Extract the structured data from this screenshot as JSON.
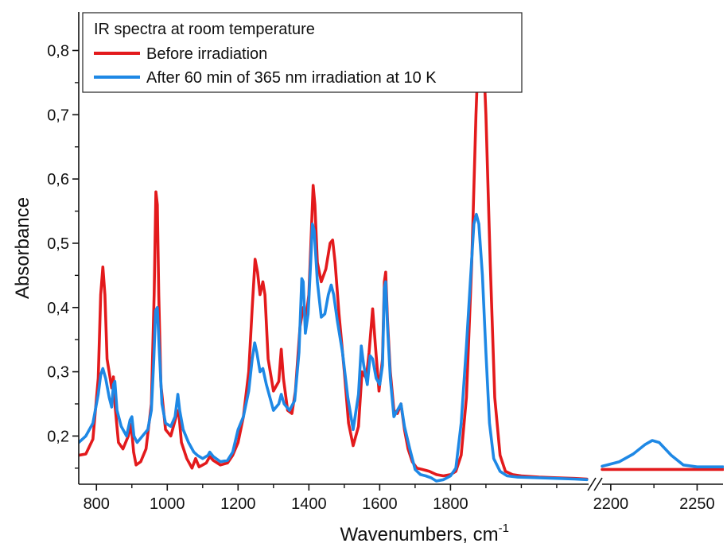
{
  "chart_data": {
    "type": "line",
    "ylabel": "Absorbance",
    "xlabel_main": "Wavenumbers, cm",
    "xlabel_sup": "-1",
    "ylim": [
      0.125,
      0.86
    ],
    "yticks": [
      0.2,
      0.3,
      0.4,
      0.5,
      0.6,
      0.7,
      0.8
    ],
    "ytick_labels": [
      "0,2",
      "0,3",
      "0,4",
      "0,5",
      "0,6",
      "0,7",
      "0,8"
    ],
    "x_segments": [
      {
        "xlim": [
          750,
          2190
        ],
        "ticks": [
          800,
          1000,
          1200,
          1400,
          1600,
          1800
        ],
        "tick_labels": [
          "800",
          "1000",
          "1200",
          "1400",
          "1600",
          "1800"
        ],
        "minor_step": 100
      },
      {
        "xlim": [
          2195,
          2265
        ],
        "ticks": [
          2200,
          2250
        ],
        "tick_labels": [
          "2200",
          "2250"
        ],
        "minor_step": 25
      }
    ],
    "axis_break": true,
    "grid": false,
    "legend_position": "top-left",
    "legend_title": "IR spectra at room temperature",
    "series": [
      {
        "name": "Before irradiation",
        "color": "#e31a1c",
        "segments": [
          [
            [
              750,
              0.17
            ],
            [
              770,
              0.172
            ],
            [
              790,
              0.195
            ],
            [
              805,
              0.29
            ],
            [
              812,
              0.42
            ],
            [
              818,
              0.463
            ],
            [
              824,
              0.42
            ],
            [
              830,
              0.32
            ],
            [
              838,
              0.292
            ],
            [
              843,
              0.275
            ],
            [
              848,
              0.292
            ],
            [
              853,
              0.245
            ],
            [
              862,
              0.19
            ],
            [
              875,
              0.18
            ],
            [
              890,
              0.2
            ],
            [
              898,
              0.218
            ],
            [
              905,
              0.175
            ],
            [
              912,
              0.155
            ],
            [
              925,
              0.16
            ],
            [
              940,
              0.18
            ],
            [
              955,
              0.25
            ],
            [
              963,
              0.42
            ],
            [
              968,
              0.58
            ],
            [
              972,
              0.56
            ],
            [
              976,
              0.42
            ],
            [
              982,
              0.28
            ],
            [
              995,
              0.21
            ],
            [
              1010,
              0.2
            ],
            [
              1025,
              0.23
            ],
            [
              1032,
              0.24
            ],
            [
              1040,
              0.19
            ],
            [
              1055,
              0.165
            ],
            [
              1070,
              0.15
            ],
            [
              1080,
              0.165
            ],
            [
              1090,
              0.152
            ],
            [
              1110,
              0.158
            ],
            [
              1120,
              0.168
            ],
            [
              1130,
              0.162
            ],
            [
              1150,
              0.155
            ],
            [
              1170,
              0.158
            ],
            [
              1185,
              0.17
            ],
            [
              1200,
              0.19
            ],
            [
              1215,
              0.23
            ],
            [
              1230,
              0.3
            ],
            [
              1240,
              0.4
            ],
            [
              1248,
              0.475
            ],
            [
              1255,
              0.455
            ],
            [
              1262,
              0.42
            ],
            [
              1270,
              0.44
            ],
            [
              1276,
              0.42
            ],
            [
              1285,
              0.32
            ],
            [
              1300,
              0.27
            ],
            [
              1315,
              0.285
            ],
            [
              1322,
              0.335
            ],
            [
              1328,
              0.29
            ],
            [
              1340,
              0.24
            ],
            [
              1352,
              0.235
            ],
            [
              1362,
              0.27
            ],
            [
              1375,
              0.37
            ],
            [
              1384,
              0.4
            ],
            [
              1392,
              0.385
            ],
            [
              1400,
              0.42
            ],
            [
              1407,
              0.52
            ],
            [
              1412,
              0.59
            ],
            [
              1417,
              0.56
            ],
            [
              1424,
              0.47
            ],
            [
              1435,
              0.44
            ],
            [
              1448,
              0.46
            ],
            [
              1460,
              0.5
            ],
            [
              1467,
              0.505
            ],
            [
              1474,
              0.47
            ],
            [
              1485,
              0.39
            ],
            [
              1500,
              0.3
            ],
            [
              1512,
              0.22
            ],
            [
              1525,
              0.185
            ],
            [
              1540,
              0.215
            ],
            [
              1550,
              0.3
            ],
            [
              1562,
              0.29
            ],
            [
              1570,
              0.33
            ],
            [
              1580,
              0.398
            ],
            [
              1588,
              0.34
            ],
            [
              1598,
              0.27
            ],
            [
              1608,
              0.32
            ],
            [
              1613,
              0.44
            ],
            [
              1617,
              0.455
            ],
            [
              1622,
              0.38
            ],
            [
              1630,
              0.3
            ],
            [
              1640,
              0.24
            ],
            [
              1650,
              0.235
            ],
            [
              1660,
              0.25
            ],
            [
              1670,
              0.21
            ],
            [
              1680,
              0.18
            ],
            [
              1692,
              0.16
            ],
            [
              1705,
              0.15
            ],
            [
              1720,
              0.148
            ],
            [
              1740,
              0.145
            ],
            [
              1760,
              0.14
            ],
            [
              1780,
              0.138
            ],
            [
              1800,
              0.14
            ],
            [
              1815,
              0.145
            ],
            [
              1830,
              0.17
            ],
            [
              1845,
              0.26
            ],
            [
              1860,
              0.47
            ],
            [
              1872,
              0.7
            ],
            [
              1880,
              0.82
            ],
            [
              1886,
              0.835
            ],
            [
              1892,
              0.81
            ],
            [
              1900,
              0.7
            ],
            [
              1912,
              0.47
            ],
            [
              1925,
              0.26
            ],
            [
              1940,
              0.17
            ],
            [
              1955,
              0.145
            ],
            [
              1975,
              0.14
            ],
            [
              2000,
              0.138
            ],
            [
              2050,
              0.136
            ],
            [
              2100,
              0.135
            ],
            [
              2150,
              0.134
            ],
            [
              2185,
              0.133
            ]
          ],
          [
            [
              2195,
              0.148
            ],
            [
              2215,
              0.148
            ],
            [
              2240,
              0.148
            ],
            [
              2265,
              0.148
            ]
          ]
        ]
      },
      {
        "name": "After 60 min of 365 nm irradiation at 10 K",
        "color": "#1e88e5",
        "segments": [
          [
            [
              750,
              0.19
            ],
            [
              770,
              0.2
            ],
            [
              790,
              0.22
            ],
            [
              805,
              0.265
            ],
            [
              812,
              0.295
            ],
            [
              818,
              0.305
            ],
            [
              826,
              0.29
            ],
            [
              836,
              0.26
            ],
            [
              843,
              0.245
            ],
            [
              848,
              0.28
            ],
            [
              852,
              0.285
            ],
            [
              858,
              0.24
            ],
            [
              870,
              0.215
            ],
            [
              885,
              0.2
            ],
            [
              895,
              0.225
            ],
            [
              900,
              0.23
            ],
            [
              906,
              0.2
            ],
            [
              915,
              0.19
            ],
            [
              930,
              0.2
            ],
            [
              945,
              0.21
            ],
            [
              955,
              0.24
            ],
            [
              962,
              0.32
            ],
            [
              967,
              0.395
            ],
            [
              972,
              0.4
            ],
            [
              977,
              0.34
            ],
            [
              985,
              0.25
            ],
            [
              995,
              0.22
            ],
            [
              1010,
              0.215
            ],
            [
              1022,
              0.23
            ],
            [
              1030,
              0.265
            ],
            [
              1035,
              0.24
            ],
            [
              1045,
              0.21
            ],
            [
              1060,
              0.19
            ],
            [
              1075,
              0.175
            ],
            [
              1085,
              0.17
            ],
            [
              1100,
              0.165
            ],
            [
              1115,
              0.17
            ],
            [
              1120,
              0.175
            ],
            [
              1130,
              0.168
            ],
            [
              1150,
              0.16
            ],
            [
              1170,
              0.162
            ],
            [
              1185,
              0.175
            ],
            [
              1200,
              0.21
            ],
            [
              1215,
              0.23
            ],
            [
              1230,
              0.27
            ],
            [
              1240,
              0.32
            ],
            [
              1247,
              0.345
            ],
            [
              1253,
              0.33
            ],
            [
              1262,
              0.3
            ],
            [
              1270,
              0.305
            ],
            [
              1280,
              0.28
            ],
            [
              1300,
              0.24
            ],
            [
              1315,
              0.25
            ],
            [
              1322,
              0.265
            ],
            [
              1330,
              0.25
            ],
            [
              1345,
              0.24
            ],
            [
              1360,
              0.255
            ],
            [
              1372,
              0.33
            ],
            [
              1380,
              0.445
            ],
            [
              1384,
              0.44
            ],
            [
              1390,
              0.36
            ],
            [
              1398,
              0.39
            ],
            [
              1405,
              0.47
            ],
            [
              1410,
              0.53
            ],
            [
              1415,
              0.52
            ],
            [
              1424,
              0.44
            ],
            [
              1435,
              0.385
            ],
            [
              1445,
              0.39
            ],
            [
              1455,
              0.42
            ],
            [
              1463,
              0.435
            ],
            [
              1470,
              0.42
            ],
            [
              1480,
              0.38
            ],
            [
              1495,
              0.33
            ],
            [
              1510,
              0.26
            ],
            [
              1525,
              0.21
            ],
            [
              1540,
              0.265
            ],
            [
              1548,
              0.34
            ],
            [
              1555,
              0.31
            ],
            [
              1565,
              0.28
            ],
            [
              1573,
              0.325
            ],
            [
              1580,
              0.32
            ],
            [
              1590,
              0.29
            ],
            [
              1600,
              0.28
            ],
            [
              1608,
              0.31
            ],
            [
              1613,
              0.43
            ],
            [
              1617,
              0.44
            ],
            [
              1622,
              0.37
            ],
            [
              1630,
              0.29
            ],
            [
              1640,
              0.23
            ],
            [
              1650,
              0.24
            ],
            [
              1660,
              0.25
            ],
            [
              1670,
              0.215
            ],
            [
              1685,
              0.18
            ],
            [
              1700,
              0.148
            ],
            [
              1715,
              0.14
            ],
            [
              1730,
              0.138
            ],
            [
              1745,
              0.135
            ],
            [
              1760,
              0.13
            ],
            [
              1780,
              0.132
            ],
            [
              1800,
              0.138
            ],
            [
              1815,
              0.15
            ],
            [
              1830,
              0.22
            ],
            [
              1845,
              0.34
            ],
            [
              1857,
              0.45
            ],
            [
              1866,
              0.53
            ],
            [
              1873,
              0.545
            ],
            [
              1880,
              0.53
            ],
            [
              1890,
              0.45
            ],
            [
              1900,
              0.33
            ],
            [
              1910,
              0.22
            ],
            [
              1922,
              0.165
            ],
            [
              1940,
              0.145
            ],
            [
              1960,
              0.138
            ],
            [
              1990,
              0.136
            ],
            [
              2050,
              0.135
            ],
            [
              2100,
              0.134
            ],
            [
              2150,
              0.133
            ],
            [
              2185,
              0.132
            ]
          ],
          [
            [
              2195,
              0.153
            ],
            [
              2205,
              0.16
            ],
            [
              2213,
              0.172
            ],
            [
              2220,
              0.187
            ],
            [
              2224,
              0.193
            ],
            [
              2228,
              0.19
            ],
            [
              2235,
              0.17
            ],
            [
              2242,
              0.155
            ],
            [
              2250,
              0.152
            ],
            [
              2265,
              0.152
            ]
          ]
        ]
      }
    ]
  }
}
